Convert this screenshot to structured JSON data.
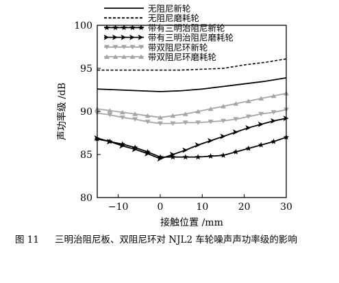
{
  "chart_data": {
    "type": "line",
    "xlabel": "接触位置 /mm",
    "ylabel": "声功率级 /dB",
    "xlim": [
      -15,
      30
    ],
    "ylim": [
      80,
      100
    ],
    "x_ticks": [
      "-10",
      "0",
      "10",
      "20",
      "30"
    ],
    "y_ticks": [
      "80",
      "85",
      "90",
      "95",
      "100"
    ],
    "legend_position": "top (above plot)",
    "series": [
      {
        "name": "无阻尼新轮",
        "style": "solid",
        "marker": "none",
        "color": "#000000",
        "x": [
          -15,
          -10,
          -5,
          0,
          5,
          10,
          15,
          20,
          25,
          30
        ],
        "y": [
          92.6,
          92.5,
          92.4,
          92.3,
          92.4,
          92.6,
          92.9,
          93.2,
          93.5,
          93.9
        ]
      },
      {
        "name": "无阻尼磨耗轮",
        "style": "dashed",
        "marker": "none",
        "color": "#000000",
        "x": [
          -15,
          -10,
          -5,
          0,
          5,
          10,
          15,
          20,
          25,
          30
        ],
        "y": [
          94.8,
          94.8,
          94.8,
          94.8,
          94.8,
          94.9,
          95.0,
          95.4,
          95.7,
          96.1
        ]
      },
      {
        "name": "带有三明治阻尼新轮",
        "style": "solid",
        "marker": "star",
        "color": "#000000",
        "x": [
          -15,
          -12,
          -9,
          -6,
          -3,
          0,
          3,
          6,
          9,
          12,
          15,
          18,
          21,
          24,
          27,
          30
        ],
        "y": [
          86.8,
          86.5,
          86.2,
          85.8,
          85.3,
          84.7,
          84.7,
          84.7,
          84.7,
          84.8,
          84.9,
          85.3,
          85.7,
          86.1,
          86.5,
          87.0
        ]
      },
      {
        "name": "带有三明治阻尼磨耗轮",
        "style": "solid",
        "marker": "chevron",
        "color": "#000000",
        "x": [
          -15,
          -12,
          -9,
          -6,
          -3,
          0,
          3,
          6,
          9,
          12,
          15,
          18,
          21,
          24,
          27,
          30
        ],
        "y": [
          86.9,
          86.5,
          86.0,
          85.6,
          85.1,
          84.5,
          85.0,
          85.5,
          86.1,
          86.6,
          87.1,
          87.6,
          88.1,
          88.5,
          88.9,
          89.2
        ]
      },
      {
        "name": "带双阻尼环新轮",
        "style": "solid",
        "marker": "triangle-down",
        "color": "#a6a6a6",
        "x": [
          -15,
          -12,
          -9,
          -6,
          -3,
          0,
          3,
          6,
          9,
          12,
          15,
          18,
          21,
          24,
          27,
          30
        ],
        "y": [
          89.8,
          89.6,
          89.3,
          89.1,
          88.8,
          88.6,
          88.6,
          88.7,
          88.7,
          88.8,
          88.9,
          89.1,
          89.4,
          89.7,
          89.9,
          90.2
        ]
      },
      {
        "name": "带双阻尼环磨耗轮",
        "style": "solid",
        "marker": "triangle-up",
        "color": "#a6a6a6",
        "x": [
          -15,
          -12,
          -9,
          -6,
          -3,
          0,
          3,
          6,
          9,
          12,
          15,
          18,
          21,
          24,
          27,
          30
        ],
        "y": [
          90.3,
          90.1,
          89.9,
          89.7,
          89.5,
          89.3,
          89.5,
          89.7,
          90.0,
          90.3,
          90.6,
          90.9,
          91.2,
          91.5,
          91.8,
          92.1
        ]
      }
    ]
  },
  "caption": {
    "number": "图 11",
    "text": "三明治阻尼板、双阻尼环对 NJL2 车轮噪声声功率级的影响"
  }
}
